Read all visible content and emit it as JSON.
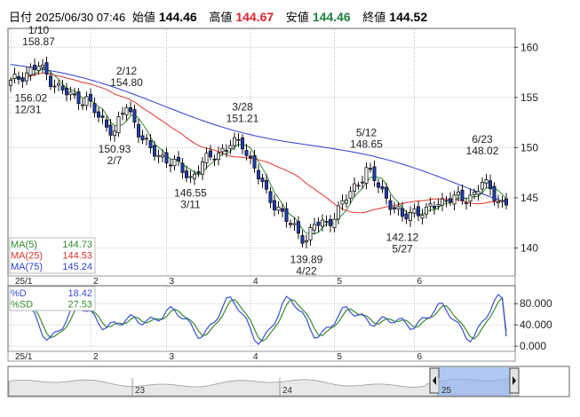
{
  "header": {
    "date_label": "日付",
    "datetime": "2025/06/30 07:46",
    "open_label": "始値",
    "open": "144.46",
    "high_label": "高値",
    "high": "144.67",
    "low_label": "安値",
    "low": "144.46",
    "close_label": "終値",
    "close": "144.52"
  },
  "colors": {
    "up": "#ffffff",
    "down": "#1f3fbf",
    "ma5": "#2e8b2e",
    "ma25": "#e0322e",
    "ma75": "#3040d0",
    "d": "#3a50d8",
    "sd": "#3a8a2a"
  },
  "chart_data": [
    {
      "type": "candlestick",
      "x_ticks": [
        "25/1",
        "2",
        "3",
        "4",
        "5",
        "6"
      ],
      "ylim": [
        137.3,
        161.8
      ],
      "y_ticks": [
        "140",
        "145",
        "150",
        "155",
        "160"
      ],
      "annotations": [
        {
          "value": "158.87",
          "date": "1/10",
          "idx": 7
        },
        {
          "value": "156.02",
          "date": "12/31",
          "idx": 1
        },
        {
          "value": "154.80",
          "date": "2/12",
          "idx": 29
        },
        {
          "value": "150.93",
          "date": "2/7",
          "idx": 26
        },
        {
          "value": "146.55",
          "date": "3/11",
          "idx": 45
        },
        {
          "value": "151.21",
          "date": "3/28",
          "idx": 58
        },
        {
          "value": "139.89",
          "date": "4/22",
          "idx": 74
        },
        {
          "value": "148.65",
          "date": "5/12",
          "idx": 89
        },
        {
          "value": "142.12",
          "date": "5/27",
          "idx": 98
        },
        {
          "value": "148.02",
          "date": "6/23",
          "idx": 118
        }
      ],
      "close_anchors": [
        [
          0,
          156.4
        ],
        [
          3,
          157.3
        ],
        [
          7,
          158.1
        ],
        [
          10,
          156.8
        ],
        [
          13,
          155.6
        ],
        [
          16,
          155.0
        ],
        [
          19,
          154.8
        ],
        [
          22,
          153.0
        ],
        [
          26,
          151.6
        ],
        [
          29,
          154.2
        ],
        [
          32,
          151.7
        ],
        [
          35,
          149.6
        ],
        [
          38,
          149.1
        ],
        [
          41,
          148.4
        ],
        [
          45,
          147.0
        ],
        [
          48,
          148.4
        ],
        [
          51,
          149.3
        ],
        [
          55,
          150.3
        ],
        [
          58,
          150.4
        ],
        [
          61,
          148.0
        ],
        [
          64,
          145.3
        ],
        [
          67,
          144.0
        ],
        [
          70,
          142.2
        ],
        [
          73,
          141.2
        ],
        [
          74,
          140.9
        ],
        [
          76,
          142.3
        ],
        [
          79,
          142.4
        ],
        [
          82,
          143.8
        ],
        [
          85,
          145.5
        ],
        [
          89,
          147.8
        ],
        [
          92,
          146.2
        ],
        [
          95,
          144.5
        ],
        [
          98,
          142.9
        ],
        [
          101,
          143.8
        ],
        [
          104,
          143.5
        ],
        [
          107,
          144.6
        ],
        [
          110,
          145.0
        ],
        [
          113,
          144.8
        ],
        [
          116,
          145.5
        ],
        [
          118,
          146.5
        ],
        [
          121,
          145.3
        ],
        [
          123,
          144.5
        ]
      ],
      "legend": [
        {
          "name": "MA(5)",
          "value": "144.73"
        },
        {
          "name": "MA(25)",
          "value": "144.53"
        },
        {
          "name": "MA(75)",
          "value": "145.24"
        }
      ]
    },
    {
      "type": "line",
      "ylim": [
        -8,
        112
      ],
      "y_ticks": [
        "80.000",
        "40.000",
        "0.000"
      ],
      "x_ticks": [
        "25/1",
        "2",
        "3",
        "4",
        "5",
        "6"
      ],
      "legend": [
        {
          "name": "%D",
          "value": "18.42"
        },
        {
          "name": "%SD",
          "value": "27.53"
        }
      ]
    },
    {
      "type": "area",
      "labels": [
        "23",
        "24",
        "25"
      ]
    }
  ]
}
